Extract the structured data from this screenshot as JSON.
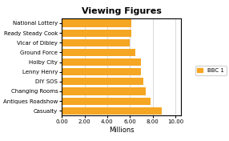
{
  "chart_data": {
    "type": "bar",
    "title": "Viewing Figures",
    "orientation": "horizontal",
    "categories": [
      "National Lottery",
      "Ready Steady Cook",
      "Vicar of Dibley",
      "Ground Force",
      "Holby City",
      "Lenny Henry",
      "DIY SOS",
      "Changing Rooms",
      "Antiques Roadshow",
      "Casualty"
    ],
    "series": [
      {
        "name": "BBC 1",
        "color": "#F5A623",
        "values": [
          6.1,
          6.1,
          6.0,
          6.5,
          7.0,
          7.0,
          7.2,
          7.4,
          7.8,
          8.8
        ]
      }
    ],
    "xlabel": "Millions",
    "xlim": [
      0,
      10.5
    ],
    "xticks": [
      {
        "value": 0,
        "label": "0.00"
      },
      {
        "value": 2,
        "label": "2.00"
      },
      {
        "value": 4,
        "label": "4.00"
      },
      {
        "value": 6,
        "label": "6.00"
      },
      {
        "value": 8,
        "label": "8.00"
      },
      {
        "value": 10,
        "label": "10.00"
      }
    ],
    "grid": true,
    "legend": "center right"
  }
}
